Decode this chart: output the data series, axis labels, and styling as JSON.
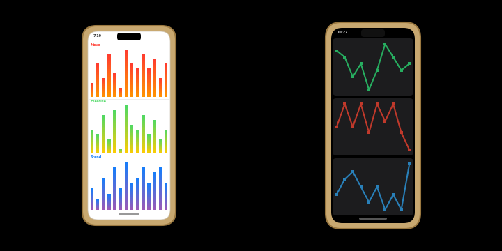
{
  "bg_color": "#000000",
  "phone1": {
    "screen_bg": "#ffffff",
    "border_color": "#c8a870",
    "border_inner": "#e8e0d0",
    "label_move": "Move",
    "label_move_color": "#ff3b30",
    "label_exercise": "Exercise",
    "label_exercise_color": "#4cd964",
    "label_stand": "Stand",
    "label_stand_color": "#147efb",
    "move_values": [
      3,
      7,
      4,
      9,
      5,
      2,
      10,
      7,
      6,
      9,
      6,
      8,
      4,
      7
    ],
    "exercise_values": [
      5,
      4,
      8,
      3,
      9,
      1,
      10,
      6,
      5,
      8,
      4,
      7,
      3,
      5
    ],
    "stand_values": [
      4,
      2,
      6,
      3,
      8,
      4,
      9,
      5,
      6,
      8,
      5,
      7,
      8,
      5
    ],
    "move_color_top": "#ff3b30",
    "move_color_bot": "#ff9500",
    "exercise_color_top": "#4cd964",
    "exercise_color_bot": "#ffcc00",
    "stand_color_top": "#147efb",
    "stand_color_bot": "#9b59b6"
  },
  "phone2": {
    "body_bg": "#1a1a1a",
    "screen_bg": "#000000",
    "border_color": "#c8a870",
    "panel_bg": "#1c1c1e",
    "green_values": [
      8,
      7,
      4,
      6,
      2,
      5,
      9,
      7,
      5,
      6
    ],
    "red_values": [
      5,
      9,
      5,
      9,
      4,
      9,
      6,
      9,
      4,
      1
    ],
    "blue_values": [
      4,
      6,
      7,
      5,
      3,
      5,
      2,
      4,
      2,
      8
    ],
    "green_color": "#27ae60",
    "red_color": "#c0392b",
    "blue_color": "#2980b9"
  }
}
